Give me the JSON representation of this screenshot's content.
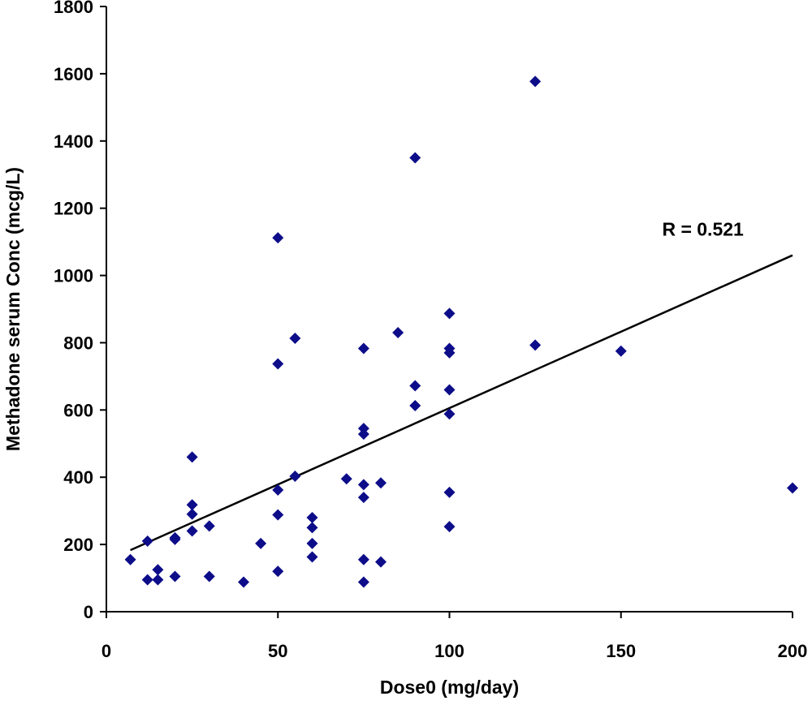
{
  "chart_data": {
    "type": "scatter",
    "title": "",
    "xlabel": "Dose0 (mg/day)",
    "ylabel": "Methadone serum Conc (mcg/L)",
    "xlim": [
      0,
      200
    ],
    "ylim": [
      0,
      1800
    ],
    "xticks": [
      0,
      50,
      100,
      150,
      200
    ],
    "yticks": [
      0,
      200,
      400,
      600,
      800,
      1000,
      1200,
      1400,
      1600,
      1800
    ],
    "grid": false,
    "legend": "none",
    "marker_color": "#0d0d8a",
    "line_color": "#000000",
    "points": [
      {
        "x": 7,
        "y": 155
      },
      {
        "x": 12,
        "y": 210
      },
      {
        "x": 12,
        "y": 95
      },
      {
        "x": 15,
        "y": 95
      },
      {
        "x": 15,
        "y": 125
      },
      {
        "x": 20,
        "y": 220
      },
      {
        "x": 20,
        "y": 215
      },
      {
        "x": 20,
        "y": 105
      },
      {
        "x": 25,
        "y": 460
      },
      {
        "x": 25,
        "y": 318
      },
      {
        "x": 25,
        "y": 290
      },
      {
        "x": 25,
        "y": 240
      },
      {
        "x": 30,
        "y": 255
      },
      {
        "x": 30,
        "y": 105
      },
      {
        "x": 40,
        "y": 88
      },
      {
        "x": 45,
        "y": 203
      },
      {
        "x": 50,
        "y": 1112
      },
      {
        "x": 50,
        "y": 737
      },
      {
        "x": 50,
        "y": 362
      },
      {
        "x": 50,
        "y": 288
      },
      {
        "x": 50,
        "y": 120
      },
      {
        "x": 55,
        "y": 813
      },
      {
        "x": 55,
        "y": 403
      },
      {
        "x": 60,
        "y": 280
      },
      {
        "x": 60,
        "y": 250
      },
      {
        "x": 60,
        "y": 203
      },
      {
        "x": 60,
        "y": 163
      },
      {
        "x": 70,
        "y": 395
      },
      {
        "x": 75,
        "y": 783
      },
      {
        "x": 75,
        "y": 545
      },
      {
        "x": 75,
        "y": 528
      },
      {
        "x": 75,
        "y": 378
      },
      {
        "x": 75,
        "y": 340
      },
      {
        "x": 75,
        "y": 155
      },
      {
        "x": 75,
        "y": 88
      },
      {
        "x": 80,
        "y": 383
      },
      {
        "x": 80,
        "y": 148
      },
      {
        "x": 85,
        "y": 830
      },
      {
        "x": 90,
        "y": 1350
      },
      {
        "x": 90,
        "y": 672
      },
      {
        "x": 90,
        "y": 613
      },
      {
        "x": 100,
        "y": 887
      },
      {
        "x": 100,
        "y": 783
      },
      {
        "x": 100,
        "y": 770
      },
      {
        "x": 100,
        "y": 660
      },
      {
        "x": 100,
        "y": 588
      },
      {
        "x": 100,
        "y": 355
      },
      {
        "x": 100,
        "y": 253
      },
      {
        "x": 125,
        "y": 1577
      },
      {
        "x": 125,
        "y": 793
      },
      {
        "x": 150,
        "y": 775
      },
      {
        "x": 200,
        "y": 368
      }
    ],
    "trendline": {
      "x": [
        7,
        200
      ],
      "y": [
        183,
        1060
      ]
    },
    "annotation": {
      "text": "R = 0.521",
      "x": 162,
      "y": 1118
    }
  }
}
